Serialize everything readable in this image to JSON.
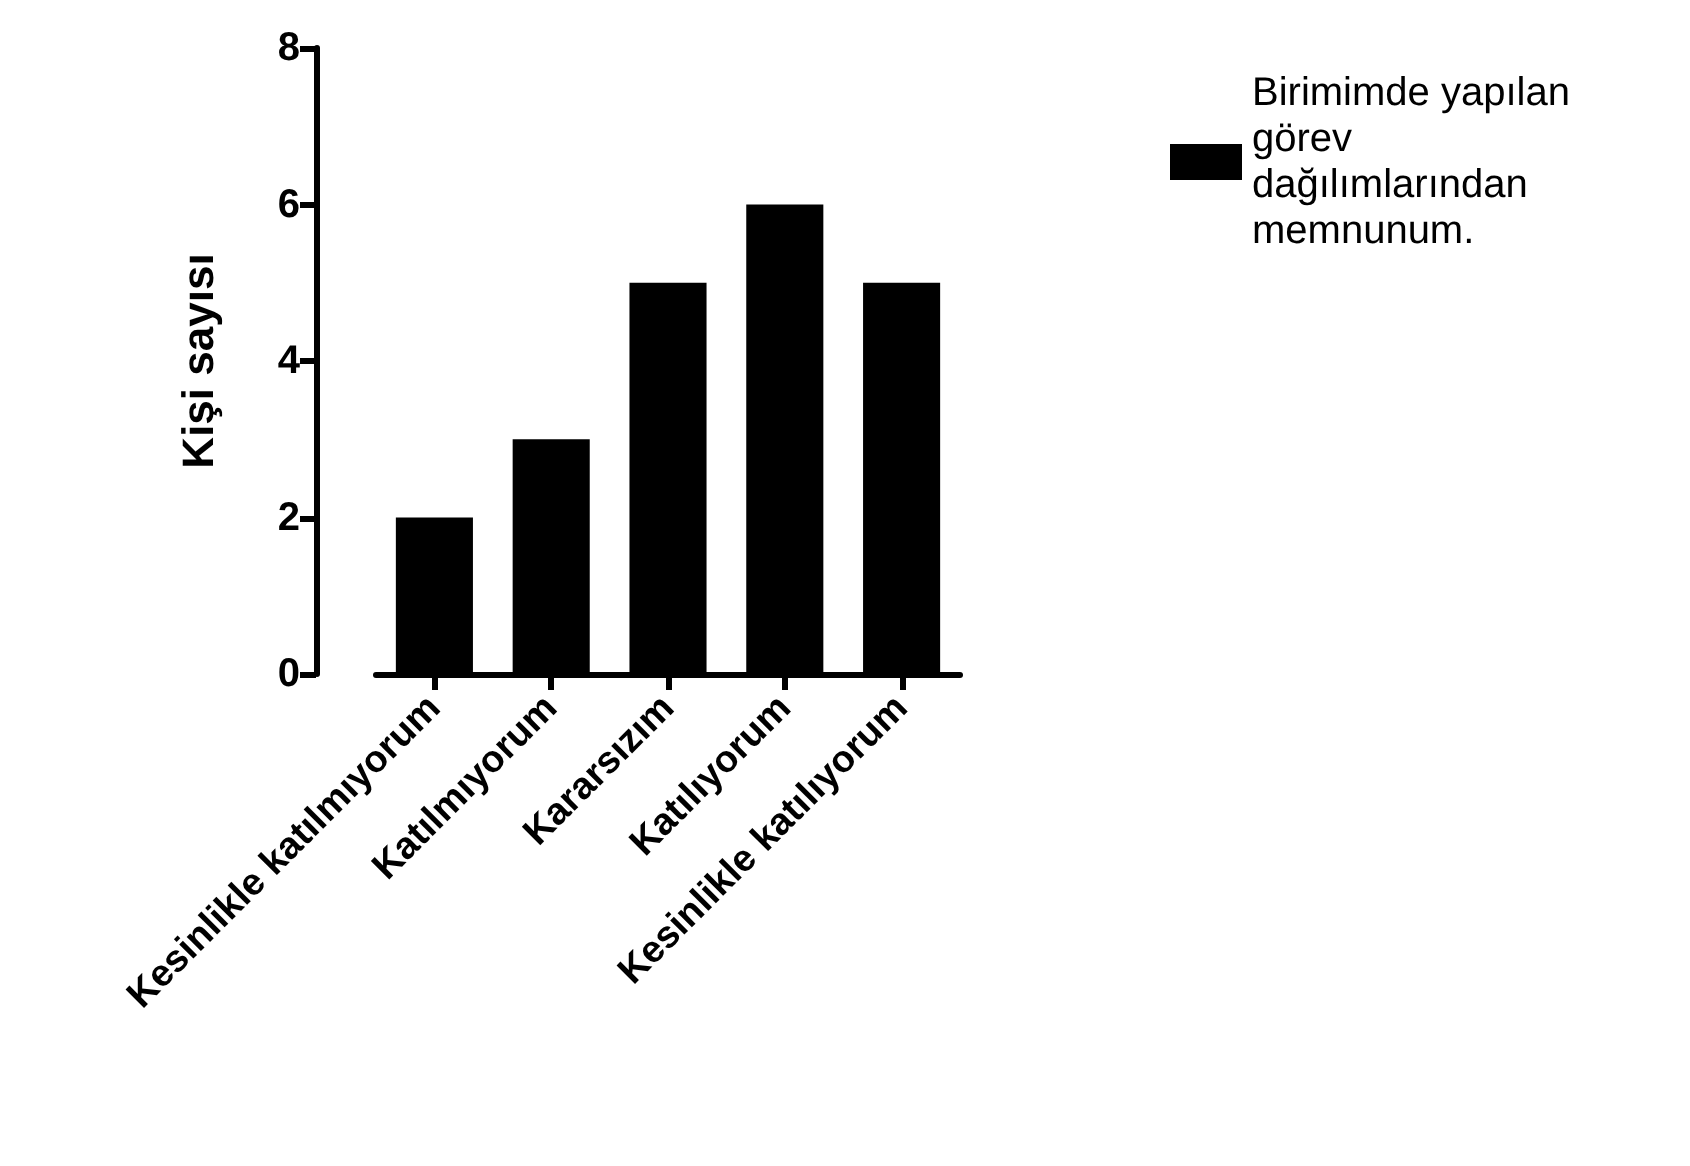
{
  "chart_data": {
    "type": "bar",
    "ylabel": "Kişi sayısı",
    "categories": [
      "Kesinlikle katılmıyorum",
      "Katılmıyorum",
      "Kararsızım",
      "Katılıyorum",
      "Kesinlikle katılıyorum"
    ],
    "series": [
      {
        "name": "Birimimde yapılan görev dağılımlarından memnunum.",
        "color": "#000000",
        "values": [
          2,
          3,
          5,
          6,
          5
        ]
      }
    ],
    "ylim": [
      0,
      8
    ],
    "yticks": [
      0,
      2,
      4,
      6,
      8
    ],
    "grid": false,
    "legend": "top right"
  }
}
